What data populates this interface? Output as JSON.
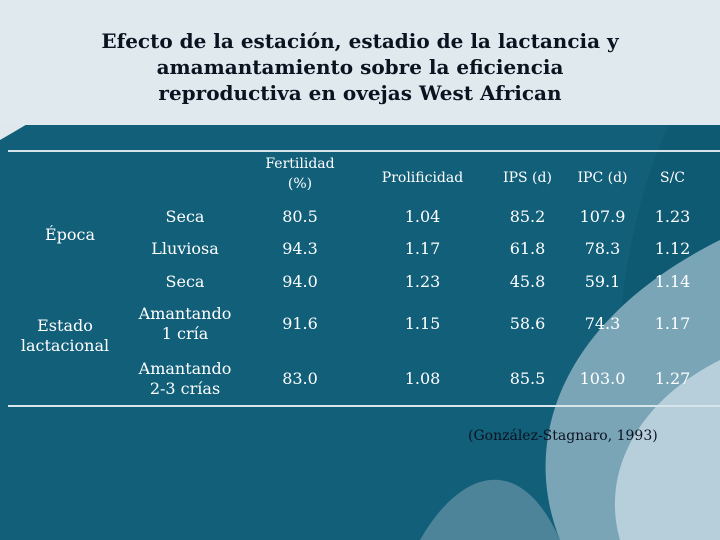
{
  "title": {
    "line1": "Efecto de la estación, estadio de la lactancia y",
    "line2": "amamantamiento sobre la eficiencia",
    "line3": "reproductiva en ovejas West African"
  },
  "table": {
    "headers": {
      "fertilidad_line1": "Fertilidad",
      "fertilidad_line2": "(%)",
      "prolificidad": "Prolificidad",
      "ips": "IPS (d)",
      "ipc": "IPC (d)",
      "sc": "S/C"
    },
    "groups": {
      "epoca": "Época",
      "estado_line1": "Estado",
      "estado_line2": "lactacional"
    },
    "rows": [
      {
        "sub1": "Seca",
        "sub2": "",
        "fert": "80.5",
        "prol": "1.04",
        "ips": "85.2",
        "ipc": "107.9",
        "sc": "1.23"
      },
      {
        "sub1": "Lluviosa",
        "sub2": "",
        "fert": "94.3",
        "prol": "1.17",
        "ips": "61.8",
        "ipc": "78.3",
        "sc": "1.12"
      },
      {
        "sub1": "Seca",
        "sub2": "",
        "fert": "94.0",
        "prol": "1.23",
        "ips": "45.8",
        "ipc": "59.1",
        "sc": "1.14"
      },
      {
        "sub1": "Amantando",
        "sub2": "1 cría",
        "fert": "91.6",
        "prol": "1.15",
        "ips": "58.6",
        "ipc": "74.3",
        "sc": "1.17"
      },
      {
        "sub1": "Amantando",
        "sub2": "2-3 crías",
        "fert": "83.0",
        "prol": "1.08",
        "ips": "85.5",
        "ipc": "103.0",
        "sc": "1.27"
      }
    ]
  },
  "citation": "(González-Stagnaro, 1993)",
  "colors": {
    "background": "#0f5a73",
    "title_text": "#0b1220",
    "table_text": "#ffffff"
  }
}
